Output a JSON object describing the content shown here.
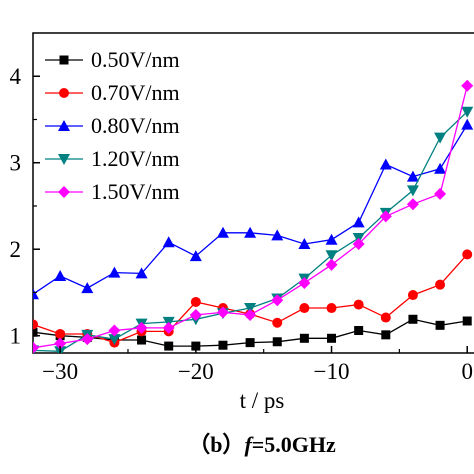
{
  "chart_data": {
    "type": "line",
    "xlabel": "t / ps",
    "ylabel": "",
    "xlim": [
      -32,
      0.5
    ],
    "ylim": [
      0.8,
      4.5
    ],
    "x_ticks": [
      -30,
      -20,
      -10,
      0
    ],
    "x_tick_labels": [
      "−30",
      "−20",
      "−10",
      "0"
    ],
    "y_ticks": [
      1,
      2,
      3,
      4
    ],
    "y_tick_labels": [
      "1",
      "2",
      "3",
      "4"
    ],
    "legend_position": "top-left",
    "caption": "（b）f=5.0GHz",
    "caption_parts": {
      "prefix": "（b）",
      "italic": "f",
      "suffix": "=5.0GHz"
    },
    "series": [
      {
        "name": "0.50V/nm",
        "color": "#000000",
        "marker": "square",
        "x": [
          -32,
          -30,
          -28,
          -26,
          -24,
          -22,
          -20,
          -18,
          -16,
          -14,
          -12,
          -10,
          -8,
          -6,
          -4,
          -2,
          0
        ],
        "y": [
          1.04,
          1.0,
          0.98,
          0.95,
          0.95,
          0.88,
          0.88,
          0.89,
          0.92,
          0.93,
          0.97,
          0.97,
          1.06,
          1.01,
          1.19,
          1.12,
          1.17
        ]
      },
      {
        "name": "0.70V/nm",
        "color": "#ff0000",
        "marker": "circle",
        "x": [
          -32,
          -30,
          -28,
          -26,
          -24,
          -22,
          -20,
          -18,
          -16,
          -14,
          -12,
          -10,
          -8,
          -6,
          -4,
          -2,
          0
        ],
        "y": [
          1.13,
          1.02,
          1.02,
          0.92,
          1.05,
          1.05,
          1.39,
          1.32,
          1.25,
          1.15,
          1.32,
          1.32,
          1.36,
          1.21,
          1.47,
          1.59,
          1.94
        ]
      },
      {
        "name": "0.80V/nm",
        "color": "#0000ff",
        "marker": "triangle-up",
        "x": [
          -32,
          -30,
          -28,
          -26,
          -24,
          -22,
          -20,
          -18,
          -16,
          -14,
          -12,
          -10,
          -8,
          -6,
          -4,
          -2,
          0
        ],
        "y": [
          1.48,
          1.69,
          1.55,
          1.73,
          1.72,
          2.08,
          1.92,
          2.19,
          2.19,
          2.16,
          2.06,
          2.11,
          2.31,
          2.98,
          2.84,
          2.93,
          3.44
        ]
      },
      {
        "name": "1.20V/nm",
        "color": "#008080",
        "marker": "triangle-down",
        "x": [
          -32,
          -30,
          -28,
          -26,
          -24,
          -22,
          -20,
          -18,
          -16,
          -14,
          -12,
          -10,
          -8,
          -6,
          -4,
          -2,
          0
        ],
        "y": [
          0.83,
          0.82,
          1.01,
          0.96,
          1.14,
          1.16,
          1.19,
          1.26,
          1.32,
          1.43,
          1.66,
          1.93,
          2.13,
          2.42,
          2.68,
          3.29,
          3.59
        ]
      },
      {
        "name": "1.50V/nm",
        "color": "#ff00ff",
        "marker": "diamond",
        "x": [
          -32,
          -30,
          -28,
          -26,
          -24,
          -22,
          -20,
          -18,
          -16,
          -14,
          -12,
          -10,
          -8,
          -6,
          -4,
          -2,
          0
        ],
        "y": [
          0.86,
          0.91,
          0.96,
          1.06,
          1.09,
          1.09,
          1.24,
          1.27,
          1.24,
          1.41,
          1.61,
          1.82,
          2.06,
          2.38,
          2.52,
          2.64,
          3.89
        ]
      }
    ]
  }
}
